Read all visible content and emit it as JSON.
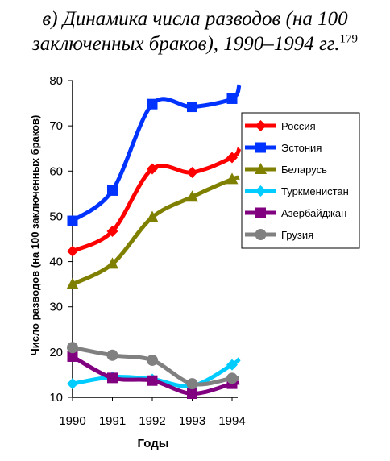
{
  "title": {
    "line1": "в) Динамика числа разводов (на 100",
    "line2": "заключенных браков), 1990–1994 гг.",
    "footnote": "179"
  },
  "chart_data": {
    "type": "line",
    "xlabel": "Годы",
    "ylabel": "Число разводов (на 100 заключенных браков)",
    "categories": [
      "1990",
      "1991",
      "1992",
      "1993",
      "1994"
    ],
    "ylim": [
      10,
      80
    ],
    "yticks": [
      10,
      20,
      30,
      40,
      50,
      60,
      70,
      80
    ],
    "grid": false,
    "legend_position": "right",
    "series": [
      {
        "name": "Россия",
        "color": "#ff0000",
        "marker": "diamond",
        "values": [
          42.3,
          46.7,
          60.5,
          59.7,
          63.0
        ],
        "end_value": 65.0
      },
      {
        "name": "Эстония",
        "color": "#0033ff",
        "marker": "square",
        "values": [
          49.0,
          55.7,
          74.8,
          74.2,
          76.0
        ],
        "end_value": 79.0
      },
      {
        "name": "Беларусь",
        "color": "#808000",
        "marker": "triangle",
        "values": [
          35.0,
          39.5,
          49.8,
          54.3,
          58.2
        ],
        "end_value": 58.5
      },
      {
        "name": "Туркменистан",
        "color": "#00ccff",
        "marker": "diamond",
        "values": [
          13.0,
          14.5,
          14.0,
          12.5,
          17.2
        ],
        "end_value": 18.5
      },
      {
        "name": "Азербайджан",
        "color": "#800080",
        "marker": "square",
        "values": [
          19.0,
          14.3,
          13.7,
          10.8,
          13.0
        ],
        "end_value": 13.2
      },
      {
        "name": "Грузия",
        "color": "#808080",
        "marker": "circle",
        "values": [
          21.0,
          19.3,
          18.2,
          13.0,
          14.2
        ],
        "end_value": 14.2
      }
    ]
  }
}
